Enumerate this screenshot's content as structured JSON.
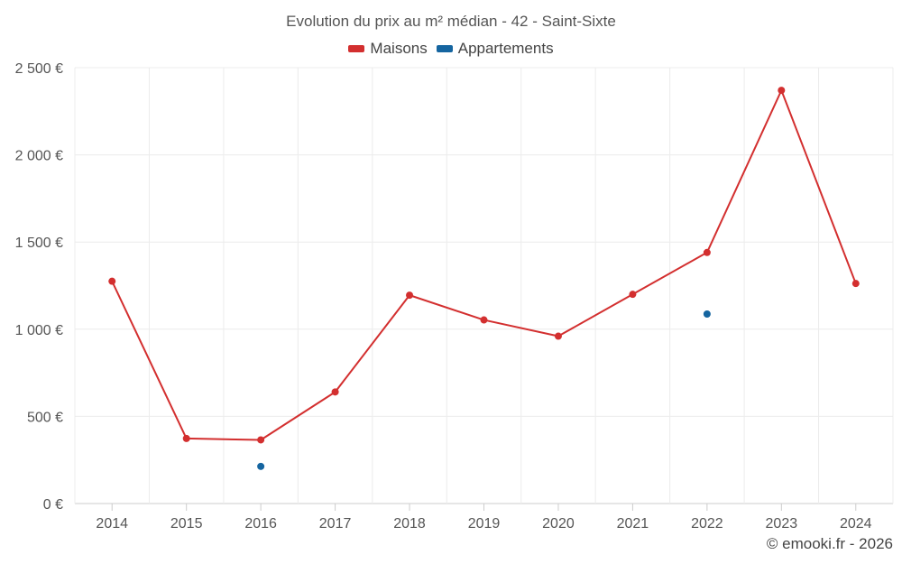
{
  "chart_data": {
    "type": "line",
    "title": "Evolution du prix au m² médian - 42 - Saint-Sixte",
    "categories": [
      "2014",
      "2015",
      "2016",
      "2017",
      "2018",
      "2019",
      "2020",
      "2021",
      "2022",
      "2023",
      "2024"
    ],
    "series": [
      {
        "name": "Maisons",
        "color": "#d32f2f",
        "values": [
          1275,
          373,
          365,
          640,
          1195,
          1053,
          960,
          1200,
          1440,
          2370,
          1262
        ]
      },
      {
        "name": "Appartements",
        "color": "#1565a0",
        "values": [
          null,
          null,
          213,
          null,
          null,
          null,
          null,
          null,
          1087,
          null,
          null
        ]
      }
    ],
    "ylim": [
      0,
      2500
    ],
    "yticks": [
      0,
      500,
      1000,
      1500,
      2000,
      2500
    ],
    "ytick_labels": [
      "0 €",
      "500 €",
      "1 000 €",
      "1 500 €",
      "2 000 €",
      "2 500 €"
    ],
    "grid": true,
    "legend_position": "top-center",
    "xlabel": "",
    "ylabel": ""
  },
  "credit": "© emooki.fr - 2026"
}
